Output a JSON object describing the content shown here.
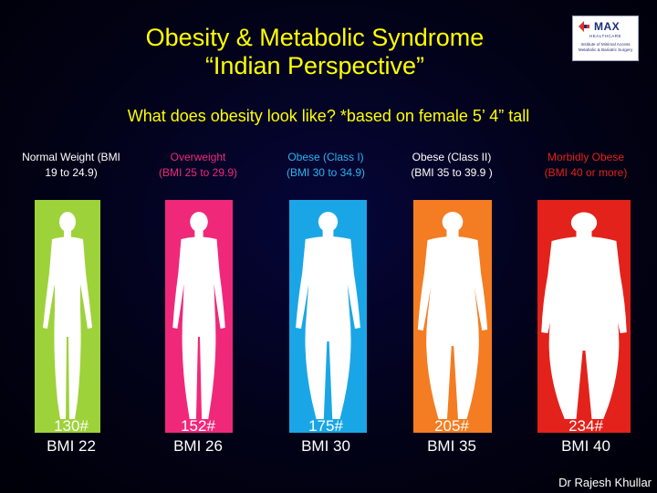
{
  "title": {
    "line1": "Obesity & Metabolic Syndrome",
    "line2": "“Indian Perspective”"
  },
  "logo": {
    "brand": "MAX",
    "sub": "HEALTHCARE",
    "line1": "Institute of Minimal Access",
    "line2": "Metabolic & Bariatric Surgery"
  },
  "subtitle": "What does obesity look like? *based on female 5’ 4” tall",
  "categories": [
    {
      "label_line1": "Normal Weight (BMI",
      "label_line2": "19 to 24.9)",
      "weight": "130#",
      "bmi": "BMI 22",
      "panel_color": "#9ed23a",
      "label_color": "#ffffff",
      "icon": "normal-weight-silhouette-icon"
    },
    {
      "label_line1": "Overweight",
      "label_line2": "(BMI 25 to 29.9)",
      "weight": "152#",
      "bmi": "BMI 26",
      "panel_color": "#f0287a",
      "label_color": "#f0287a",
      "icon": "overweight-silhouette-icon"
    },
    {
      "label_line1": "Obese (Class I)",
      "label_line2": "(BMI 30 to 34.9)",
      "weight": "175#",
      "bmi": "BMI 30",
      "panel_color": "#1aa6e6",
      "label_color": "#2ab4f0",
      "icon": "obese-class-1-silhouette-icon"
    },
    {
      "label_line1": "Obese (Class II)",
      "label_line2": "(BMI 35 to 39.9 )",
      "weight": "205#",
      "bmi": "BMI 35",
      "panel_color": "#f47c22",
      "label_color": "#ffffff",
      "icon": "obese-class-2-silhouette-icon"
    },
    {
      "label_line1": "Morbidly Obese",
      "label_line2": "(BMI 40 or more)",
      "weight": "234#",
      "bmi": "BMI 40",
      "panel_color": "#e3221b",
      "label_color": "#e3221b",
      "icon": "morbidly-obese-silhouette-icon"
    }
  ],
  "footer": "Dr Rajesh Khullar"
}
